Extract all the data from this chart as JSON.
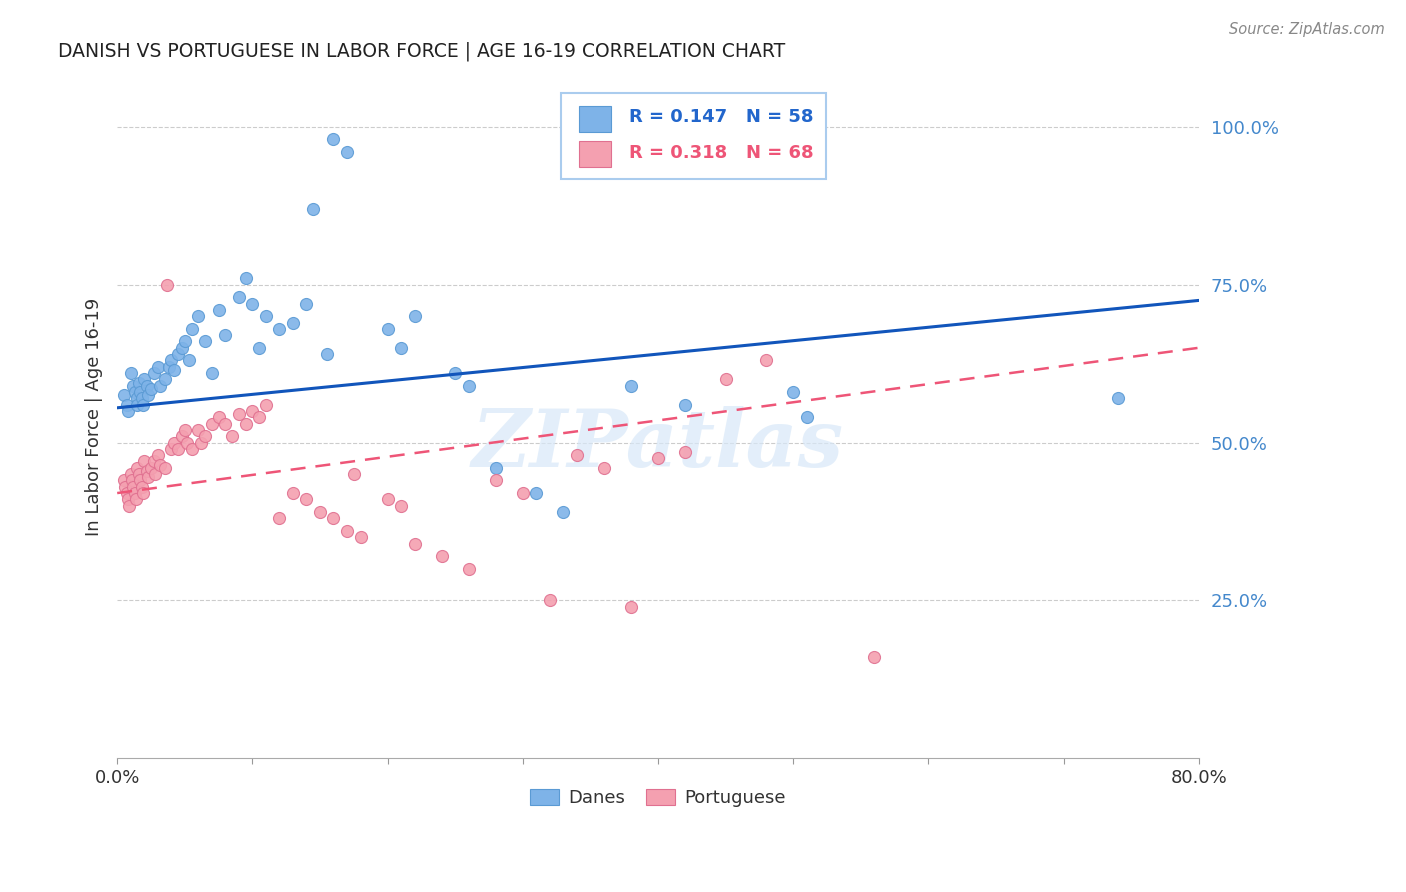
{
  "title": "DANISH VS PORTUGUESE IN LABOR FORCE | AGE 16-19 CORRELATION CHART",
  "source": "Source: ZipAtlas.com",
  "ylabel": "In Labor Force | Age 16-19",
  "xlim": [
    0.0,
    0.8
  ],
  "ylim": [
    0.0,
    1.08
  ],
  "danes_color": "#7EB3E8",
  "danes_edge": "#5A9AD4",
  "portuguese_color": "#F4A0B0",
  "portuguese_edge": "#E07090",
  "trend_danes_color": "#1155BB",
  "trend_portuguese_color": "#EE5577",
  "watermark": "ZIPatlas",
  "legend_danes_text": "R = 0.147   N = 58",
  "legend_port_text": "R = 0.318   N = 68",
  "legend_danes_color": "#2266CC",
  "legend_port_color": "#EE5577",
  "danes_x": [
    0.005,
    0.007,
    0.008,
    0.01,
    0.012,
    0.013,
    0.015,
    0.015,
    0.016,
    0.017,
    0.018,
    0.019,
    0.02,
    0.022,
    0.023,
    0.025,
    0.027,
    0.03,
    0.032,
    0.035,
    0.038,
    0.04,
    0.042,
    0.045,
    0.048,
    0.05,
    0.053,
    0.055,
    0.06,
    0.065,
    0.07,
    0.075,
    0.08,
    0.09,
    0.095,
    0.1,
    0.105,
    0.11,
    0.12,
    0.13,
    0.14,
    0.145,
    0.155,
    0.16,
    0.17,
    0.2,
    0.21,
    0.22,
    0.25,
    0.26,
    0.28,
    0.31,
    0.33,
    0.38,
    0.42,
    0.5,
    0.51,
    0.74
  ],
  "danes_y": [
    0.575,
    0.56,
    0.55,
    0.61,
    0.59,
    0.58,
    0.57,
    0.56,
    0.595,
    0.58,
    0.57,
    0.56,
    0.6,
    0.59,
    0.575,
    0.585,
    0.61,
    0.62,
    0.59,
    0.6,
    0.62,
    0.63,
    0.615,
    0.64,
    0.65,
    0.66,
    0.63,
    0.68,
    0.7,
    0.66,
    0.61,
    0.71,
    0.67,
    0.73,
    0.76,
    0.72,
    0.65,
    0.7,
    0.68,
    0.69,
    0.72,
    0.87,
    0.64,
    0.98,
    0.96,
    0.68,
    0.65,
    0.7,
    0.61,
    0.59,
    0.46,
    0.42,
    0.39,
    0.59,
    0.56,
    0.58,
    0.54,
    0.57
  ],
  "port_x": [
    0.005,
    0.006,
    0.007,
    0.008,
    0.009,
    0.01,
    0.011,
    0.012,
    0.013,
    0.014,
    0.015,
    0.016,
    0.017,
    0.018,
    0.019,
    0.02,
    0.022,
    0.023,
    0.025,
    0.027,
    0.028,
    0.03,
    0.032,
    0.035,
    0.037,
    0.04,
    0.042,
    0.045,
    0.048,
    0.05,
    0.052,
    0.055,
    0.06,
    0.062,
    0.065,
    0.07,
    0.075,
    0.08,
    0.085,
    0.09,
    0.095,
    0.1,
    0.105,
    0.11,
    0.12,
    0.13,
    0.14,
    0.15,
    0.16,
    0.17,
    0.175,
    0.18,
    0.2,
    0.21,
    0.22,
    0.24,
    0.26,
    0.28,
    0.3,
    0.32,
    0.34,
    0.36,
    0.38,
    0.4,
    0.42,
    0.45,
    0.48,
    0.56
  ],
  "port_y": [
    0.44,
    0.43,
    0.42,
    0.41,
    0.4,
    0.45,
    0.44,
    0.43,
    0.42,
    0.41,
    0.46,
    0.45,
    0.44,
    0.43,
    0.42,
    0.47,
    0.455,
    0.445,
    0.46,
    0.47,
    0.45,
    0.48,
    0.465,
    0.46,
    0.75,
    0.49,
    0.5,
    0.49,
    0.51,
    0.52,
    0.5,
    0.49,
    0.52,
    0.5,
    0.51,
    0.53,
    0.54,
    0.53,
    0.51,
    0.545,
    0.53,
    0.55,
    0.54,
    0.56,
    0.38,
    0.42,
    0.41,
    0.39,
    0.38,
    0.36,
    0.45,
    0.35,
    0.41,
    0.4,
    0.34,
    0.32,
    0.3,
    0.44,
    0.42,
    0.25,
    0.48,
    0.46,
    0.24,
    0.475,
    0.485,
    0.6,
    0.63,
    0.16
  ],
  "danes_trend_x": [
    0.0,
    0.8
  ],
  "danes_trend_y": [
    0.555,
    0.725
  ],
  "port_trend_x": [
    0.0,
    0.8
  ],
  "port_trend_y": [
    0.42,
    0.65
  ]
}
